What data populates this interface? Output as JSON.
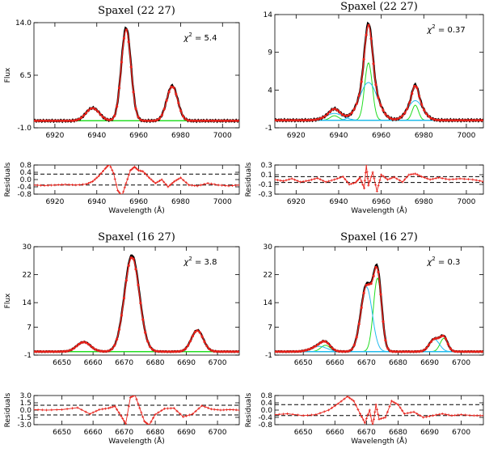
{
  "colors": {
    "data": "#000000",
    "model": "#e8221b",
    "narrow": "#22dd22",
    "broad": "#22bbee",
    "ref": "#000000"
  },
  "chart_data": [
    {
      "type": "line",
      "id": "p1",
      "title": "Spaxel (22 27)",
      "annotation_prefix": "χ",
      "annotation_sup": "2",
      "annotation_value": "= 5.4",
      "xlim": [
        6910,
        7008
      ],
      "ylim": [
        -1.0,
        14.0
      ],
      "xticks": [
        6920,
        6940,
        6960,
        6980,
        7000
      ],
      "yticks": [
        -1.0,
        6.5,
        14.0
      ],
      "ytick_labels": [
        "-1.0",
        "6.5",
        "14.0"
      ],
      "xlabel": "",
      "ylabel": "Flux",
      "continuum": 0.0,
      "peaks": [
        {
          "center": 6938,
          "amp": 1.8,
          "sigma": 3.2,
          "kind": "narrow"
        },
        {
          "center": 6954,
          "amp": 13.0,
          "sigma": 2.3,
          "kind": "narrow"
        },
        {
          "center": 6976,
          "amp": 4.9,
          "sigma": 2.6,
          "kind": "narrow"
        }
      ]
    },
    {
      "type": "line",
      "id": "p2",
      "title": "Spaxel (22 27)",
      "annotation_prefix": "χ",
      "annotation_sup": "2",
      "annotation_value": "= 0.37",
      "xlim": [
        6910,
        7008
      ],
      "ylim": [
        -1,
        14
      ],
      "xticks": [
        6920,
        6940,
        6960,
        6980,
        7000
      ],
      "yticks": [
        -1,
        4,
        9,
        14
      ],
      "ytick_labels": [
        "-1",
        "4",
        "9",
        "14"
      ],
      "xlabel": "",
      "ylabel": "",
      "continuum": 0.0,
      "peaks": [
        {
          "center": 6938,
          "amp": 0.6,
          "sigma": 2.0,
          "kind": "narrow"
        },
        {
          "center": 6954,
          "amp": 7.6,
          "sigma": 1.8,
          "kind": "narrow"
        },
        {
          "center": 6976,
          "amp": 2.0,
          "sigma": 1.5,
          "kind": "narrow"
        },
        {
          "center": 6938,
          "amp": 0.9,
          "sigma": 4.0,
          "kind": "broad"
        },
        {
          "center": 6954,
          "amp": 5.0,
          "sigma": 4.2,
          "kind": "broad"
        },
        {
          "center": 6976,
          "amp": 2.6,
          "sigma": 3.5,
          "kind": "broad"
        }
      ]
    },
    {
      "type": "line",
      "id": "r1",
      "title": "",
      "xlim": [
        6910,
        7008
      ],
      "ylim": [
        -0.8,
        0.8
      ],
      "xticks": [
        6920,
        6940,
        6960,
        6980,
        7000
      ],
      "yticks": [
        -0.8,
        -0.4,
        0.0,
        0.4,
        0.8
      ],
      "ytick_labels": [
        "-0.8",
        "-0.4",
        "0.0",
        "0.4",
        "0.8"
      ],
      "reflines": [
        0.3,
        -0.3
      ],
      "xlabel": "Wavelength (Å)",
      "ylabel": "Residuals",
      "residuals": {
        "x": [
          6910,
          6915,
          6920,
          6925,
          6930,
          6935,
          6938,
          6941,
          6944,
          6946,
          6948,
          6950,
          6952,
          6954,
          6956,
          6958,
          6960,
          6962,
          6965,
          6968,
          6971,
          6974,
          6977,
          6980,
          6984,
          6988,
          6993,
          6998,
          7003,
          7008
        ],
        "y": [
          -0.3,
          -0.33,
          -0.3,
          -0.27,
          -0.3,
          -0.25,
          -0.1,
          0.2,
          0.6,
          0.85,
          0.35,
          -0.6,
          -0.9,
          -0.2,
          0.5,
          0.7,
          0.5,
          0.45,
          0.1,
          -0.2,
          0.0,
          -0.4,
          -0.1,
          0.1,
          -0.3,
          -0.35,
          -0.2,
          -0.3,
          -0.35,
          -0.3
        ]
      }
    },
    {
      "type": "line",
      "id": "r2",
      "title": "",
      "xlim": [
        6910,
        7008
      ],
      "ylim": [
        -0.3,
        0.3
      ],
      "xticks": [
        6920,
        6940,
        6960,
        6980,
        7000
      ],
      "yticks": [
        -0.3,
        -0.1,
        0.1,
        0.3
      ],
      "ytick_labels": [
        "-0.3",
        "-0.1",
        "0.1",
        "0.3"
      ],
      "reflines": [
        0.06,
        -0.06
      ],
      "xlabel": "Wavelength (Å)",
      "ylabel": "Residuals",
      "residuals": {
        "x": [
          6910,
          6914,
          6918,
          6922,
          6926,
          6930,
          6934,
          6938,
          6942,
          6945,
          6948,
          6950,
          6952,
          6953,
          6954,
          6956,
          6958,
          6960,
          6963,
          6966,
          6970,
          6973,
          6976,
          6979,
          6983,
          6987,
          6992,
          6997,
          7003,
          7008
        ],
        "y": [
          0.0,
          -0.03,
          0.02,
          -0.05,
          -0.02,
          0.03,
          -0.05,
          0.0,
          0.06,
          -0.1,
          -0.06,
          0.04,
          -0.18,
          0.3,
          -0.12,
          0.15,
          -0.24,
          0.1,
          0.0,
          0.05,
          -0.05,
          0.1,
          0.12,
          0.06,
          0.0,
          0.04,
          0.0,
          0.02,
          0.0,
          -0.04
        ]
      }
    },
    {
      "type": "line",
      "id": "p3",
      "title": "Spaxel (16 27)",
      "annotation_prefix": "χ",
      "annotation_sup": "2",
      "annotation_value": "= 3.8",
      "xlim": [
        6641,
        6707
      ],
      "ylim": [
        -1,
        30
      ],
      "xticks": [
        6650,
        6660,
        6670,
        6680,
        6690,
        6700
      ],
      "yticks": [
        -1,
        7,
        14,
        22,
        30
      ],
      "ytick_labels": [
        "-1",
        "7",
        "14",
        "22",
        "30"
      ],
      "xlabel": "",
      "ylabel": "Flux",
      "continuum": 0.0,
      "peaks": [
        {
          "center": 6657,
          "amp": 2.7,
          "sigma": 2.2,
          "kind": "narrow"
        },
        {
          "center": 6672.5,
          "amp": 27.0,
          "sigma": 2.4,
          "kind": "narrow"
        },
        {
          "center": 6693.5,
          "amp": 6.0,
          "sigma": 1.9,
          "kind": "narrow"
        }
      ]
    },
    {
      "type": "line",
      "id": "p4",
      "title": "Spaxel (16 27)",
      "annotation_prefix": "χ",
      "annotation_sup": "2",
      "annotation_value": "= 0.3",
      "xlim": [
        6641,
        6707
      ],
      "ylim": [
        -1,
        30
      ],
      "xticks": [
        6650,
        6660,
        6670,
        6680,
        6690,
        6700
      ],
      "yticks": [
        -1,
        7,
        14,
        22,
        30
      ],
      "ytick_labels": [
        "-1",
        "7",
        "14",
        "22",
        "30"
      ],
      "xlabel": "",
      "ylabel": "",
      "continuum": 0.0,
      "peaks": [
        {
          "center": 6657,
          "amp": 1.8,
          "sigma": 1.5,
          "kind": "narrow"
        },
        {
          "center": 6673.5,
          "amp": 21.0,
          "sigma": 1.3,
          "kind": "narrow"
        },
        {
          "center": 6694.5,
          "amp": 3.8,
          "sigma": 1.2,
          "kind": "narrow"
        },
        {
          "center": 6655,
          "amp": 1.5,
          "sigma": 2.5,
          "kind": "broad"
        },
        {
          "center": 6670,
          "amp": 18.5,
          "sigma": 1.8,
          "kind": "broad"
        },
        {
          "center": 6691.5,
          "amp": 3.5,
          "sigma": 1.6,
          "kind": "broad"
        }
      ]
    },
    {
      "type": "line",
      "id": "r3",
      "title": "",
      "xlim": [
        6641,
        6707
      ],
      "ylim": [
        -3.0,
        3.0
      ],
      "xticks": [
        6650,
        6660,
        6670,
        6680,
        6690,
        6700
      ],
      "yticks": [
        -3.0,
        -1.5,
        0.0,
        1.5,
        3.0
      ],
      "ytick_labels": [
        "-3.0",
        "-1.5",
        "0.0",
        "1.5",
        "3.0"
      ],
      "reflines": [
        1.0,
        -1.0
      ],
      "xlabel": "Wavelength (Å)",
      "ylabel": "Residuals",
      "residuals": {
        "x": [
          6641,
          6645,
          6650,
          6655,
          6659,
          6662,
          6665,
          6667,
          6669,
          6670.5,
          6672,
          6673.5,
          6675,
          6676.5,
          6678,
          6680,
          6683,
          6686,
          6689,
          6692,
          6695,
          6698,
          6701,
          6704,
          6707
        ],
        "y": [
          0.1,
          0.0,
          0.1,
          0.5,
          -0.8,
          0.1,
          0.4,
          0.8,
          -1.2,
          -2.8,
          2.6,
          3.1,
          0.4,
          -2.3,
          -3.1,
          -0.9,
          0.3,
          0.4,
          -1.4,
          -0.8,
          0.9,
          0.2,
          0.0,
          0.1,
          0.0
        ]
      }
    },
    {
      "type": "line",
      "id": "r4",
      "title": "",
      "xlim": [
        6641,
        6707
      ],
      "ylim": [
        -0.8,
        0.8
      ],
      "xticks": [
        6650,
        6660,
        6670,
        6680,
        6690,
        6700
      ],
      "yticks": [
        -0.8,
        -0.4,
        0.0,
        0.4,
        0.8
      ],
      "ytick_labels": [
        "-0.8",
        "-0.4",
        "0.0",
        "0.4",
        "0.8"
      ],
      "reflines": [
        0.3,
        -0.3
      ],
      "xlabel": "Wavelength (Å)",
      "ylabel": "Residuals",
      "residuals": {
        "x": [
          6641,
          6645,
          6650,
          6654,
          6658,
          6661,
          6664,
          6666,
          6668,
          6669.5,
          6671,
          6672,
          6673,
          6674,
          6676,
          6678,
          6680,
          6682,
          6685,
          6688,
          6691,
          6694,
          6697,
          6700,
          6704,
          6707
        ],
        "y": [
          -0.25,
          -0.2,
          -0.3,
          -0.25,
          0.0,
          0.35,
          0.75,
          0.5,
          -0.2,
          -0.7,
          0.0,
          -0.9,
          0.3,
          -0.5,
          -0.4,
          0.5,
          0.3,
          -0.2,
          -0.1,
          -0.4,
          -0.3,
          -0.2,
          -0.3,
          -0.25,
          -0.3,
          -0.3
        ]
      }
    }
  ]
}
